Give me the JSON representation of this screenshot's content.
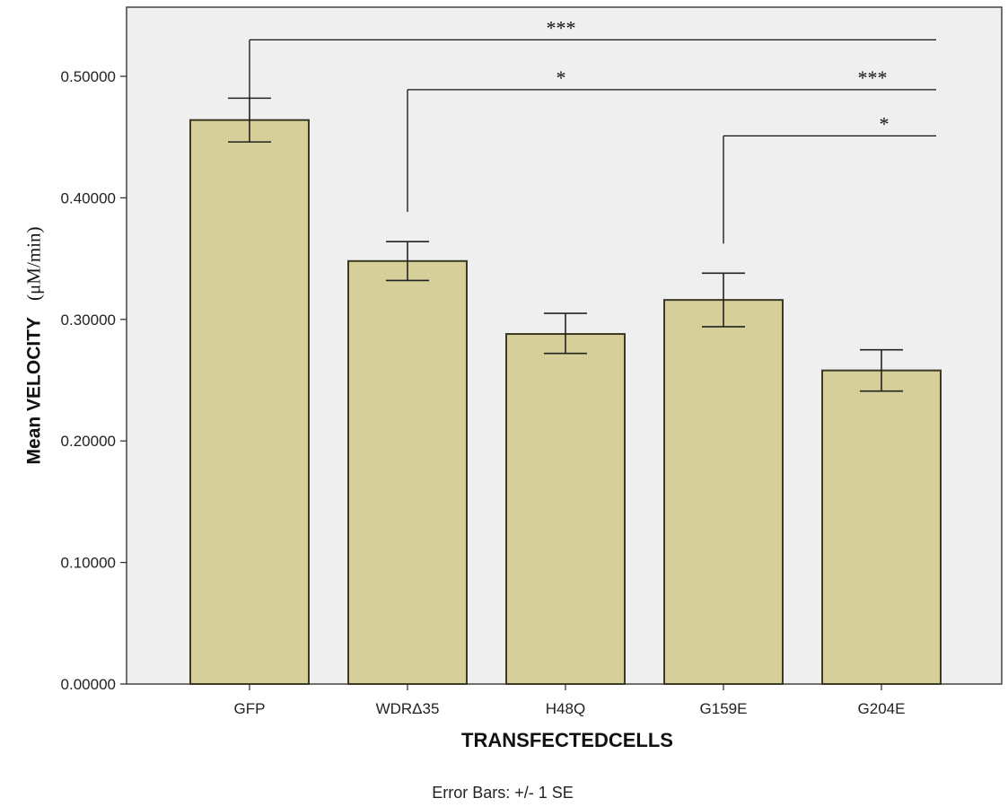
{
  "chart_data": {
    "type": "bar",
    "categories": [
      "GFP",
      "WDRΔ35",
      "H48Q",
      "G159E",
      "G204E"
    ],
    "values": [
      0.464,
      0.348,
      0.288,
      0.316,
      0.258
    ],
    "error_bars": {
      "type": "SE",
      "lower": [
        0.446,
        0.332,
        0.272,
        0.294,
        0.241
      ],
      "upper": [
        0.482,
        0.364,
        0.305,
        0.338,
        0.275
      ]
    },
    "ylim": [
      0,
      0.55
    ],
    "yticks": [
      "0.00000",
      "0.10000",
      "0.20000",
      "0.30000",
      "0.40000",
      "0.50000"
    ],
    "ytick_values": [
      0,
      0.1,
      0.2,
      0.3,
      0.4,
      0.5
    ],
    "xlabel": "TRANSFECTEDCELLS",
    "ylabel": "Mean VELOCITY",
    "ylabel_unit": "(μM/min)",
    "footnote": "Error Bars: +/- 1 SE",
    "grid": false,
    "significance": [
      {
        "from": "GFP",
        "to": "G204E",
        "label": "***",
        "level": 0.53
      },
      {
        "from": "WDRΔ35",
        "to": "G204E",
        "label": "*",
        "label_right": "***",
        "level": 0.489
      },
      {
        "from": "G159E",
        "to": "G204E",
        "label": "*",
        "level": 0.451
      }
    ],
    "bar_color": "#d6cf9a",
    "bar_edge": "#3a3a25",
    "plot_bg": "#efefef"
  }
}
